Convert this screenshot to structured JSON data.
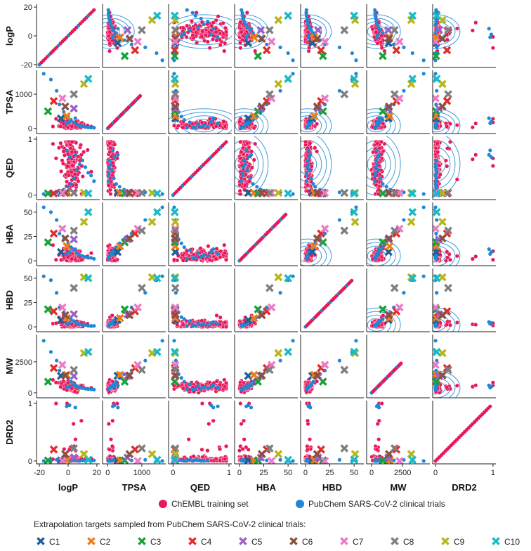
{
  "chart_data": {
    "type": "scatter",
    "title": "",
    "variables": [
      "logP",
      "TPSA",
      "QED",
      "HBA",
      "HBD",
      "MW",
      "DRD2"
    ],
    "axes": {
      "logP": {
        "range": [
          -22,
          22
        ],
        "ticks": [
          -20,
          0,
          20
        ],
        "tick_labels": [
          "-20",
          "0",
          "20"
        ]
      },
      "TPSA": {
        "range": [
          -150,
          1700
        ],
        "ticks": [
          0,
          1000
        ],
        "tick_labels": [
          "0",
          "1000"
        ]
      },
      "QED": {
        "range": [
          -0.08,
          1.05
        ],
        "ticks": [
          0,
          1
        ],
        "tick_labels": [
          "0",
          "1"
        ]
      },
      "HBA": {
        "range": [
          -5,
          60
        ],
        "ticks": [
          0,
          25,
          50
        ],
        "tick_labels": [
          "0",
          "25",
          "50"
        ]
      },
      "HBD": {
        "range": [
          -5,
          60
        ],
        "ticks": [
          0,
          25,
          50
        ],
        "tick_labels": [
          "0",
          "25",
          "50"
        ]
      },
      "MW": {
        "range": [
          -400,
          4700
        ],
        "ticks": [
          0,
          2500
        ],
        "tick_labels": [
          "0",
          "2500"
        ]
      },
      "DRD2": {
        "range": [
          -0.05,
          1.05
        ],
        "ticks": [
          0,
          1
        ],
        "tick_labels": [
          "0",
          "1"
        ]
      }
    },
    "training_set": {
      "name": "ChEMBL training set",
      "color": "#e8185a",
      "center": [
        3,
        80,
        0.55,
        5,
        2,
        400,
        0.01
      ],
      "spread": [
        4,
        70,
        0.25,
        3,
        2,
        150,
        0.03
      ],
      "note": "dense cloud of points; diagonal panels show identity line"
    },
    "clinical_trials": {
      "name": "PubChem SARS-CoV-2 clinical trials",
      "color": "#1e88d6",
      "points": [
        [
          -17,
          1600,
          0.02,
          55,
          52,
          4200,
          0.0
        ],
        [
          -12,
          1430,
          0.03,
          50,
          48,
          3300,
          0.0
        ],
        [
          -8,
          1100,
          0.05,
          42,
          35,
          2600,
          0.02
        ],
        [
          -6,
          700,
          0.08,
          28,
          20,
          1800,
          0.01
        ],
        [
          -3,
          480,
          0.1,
          22,
          15,
          1500,
          0.03
        ],
        [
          0,
          350,
          0.15,
          18,
          10,
          1200,
          0.01
        ],
        [
          2,
          250,
          0.2,
          14,
          8,
          900,
          0.0
        ],
        [
          4,
          180,
          0.3,
          11,
          6,
          700,
          0.02
        ],
        [
          6,
          120,
          0.45,
          8,
          4,
          550,
          0.01
        ],
        [
          8,
          90,
          0.55,
          6,
          3,
          450,
          0.0
        ],
        [
          10,
          60,
          0.62,
          5,
          2,
          380,
          0.01
        ],
        [
          12,
          40,
          0.5,
          4,
          2,
          330,
          0.0
        ],
        [
          14,
          30,
          0.4,
          3,
          1,
          300,
          0.02
        ],
        [
          16,
          25,
          0.35,
          3,
          1,
          280,
          0.0
        ],
        [
          18,
          20,
          0.25,
          2,
          1,
          260,
          0.01
        ],
        [
          5,
          300,
          0.72,
          12,
          5,
          600,
          0.93
        ],
        [
          1,
          200,
          0.68,
          9,
          4,
          500,
          0.97
        ],
        [
          -1,
          150,
          0.8,
          7,
          3,
          420,
          0.95
        ]
      ]
    },
    "targets": [
      {
        "name": "C1",
        "color": "#1f5f99",
        "values": [
          -5,
          290,
          0.04,
          9,
          7,
          1370,
          0.01
        ]
      },
      {
        "name": "C2",
        "color": "#f07d14",
        "values": [
          -1,
          360,
          0.04,
          15,
          9,
          1450,
          0.01
        ]
      },
      {
        "name": "C3",
        "color": "#18a23a",
        "values": [
          -14,
          500,
          0.03,
          19,
          18,
          900,
          0.01
        ]
      },
      {
        "name": "C4",
        "color": "#e22b2b",
        "values": [
          -10,
          800,
          0.03,
          28,
          16,
          2000,
          0.2
        ]
      },
      {
        "name": "C5",
        "color": "#9a62c8",
        "values": [
          4,
          580,
          0.04,
          22,
          13,
          1350,
          0.06
        ]
      },
      {
        "name": "C6",
        "color": "#8a5040",
        "values": [
          -2,
          640,
          0.04,
          23,
          12,
          1400,
          0.12
        ]
      },
      {
        "name": "C7",
        "color": "#ec7bc7",
        "values": [
          -4,
          880,
          0.04,
          33,
          20,
          2250,
          0.0
        ]
      },
      {
        "name": "C8",
        "color": "#7f7f7f",
        "values": [
          4,
          1000,
          0.04,
          31,
          40,
          1850,
          0.22
        ]
      },
      {
        "name": "C9",
        "color": "#b8b61a",
        "values": [
          11,
          1300,
          0.04,
          40,
          51,
          3200,
          0.12
        ]
      },
      {
        "name": "C10",
        "color": "#1bb9c9",
        "values": [
          14,
          1450,
          0.03,
          50,
          50,
          3300,
          0.02
        ]
      }
    ],
    "legend": {
      "training_label": "ChEMBL training set",
      "clinical_label": "PubChem SARS-CoV-2 clinical trials",
      "targets_title": "Extrapolation targets sampled from PubChem SARS-CoV-2 clinical trials:",
      "placement": "bottom"
    }
  }
}
